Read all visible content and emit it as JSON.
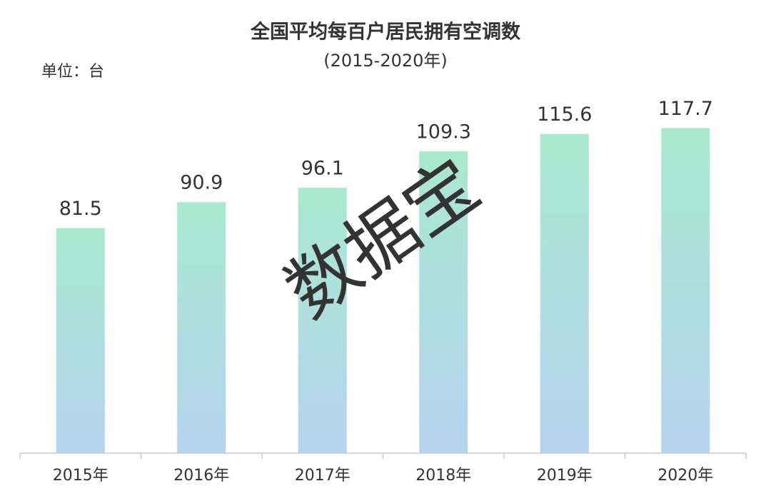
{
  "chart_data": {
    "type": "bar",
    "title": "全国平均每百户居民拥有空调数",
    "subtitle": "(2015-2020年)",
    "unit_label": "单位：台",
    "watermark": "数据宝",
    "categories": [
      "2015年",
      "2016年",
      "2017年",
      "2018年",
      "2019年",
      "2020年"
    ],
    "values": [
      81.5,
      90.9,
      96.1,
      109.3,
      115.6,
      117.7
    ],
    "color": [
      "#a9e9cf",
      "#b6d3ef"
    ],
    "ylim": [
      0,
      140
    ]
  }
}
